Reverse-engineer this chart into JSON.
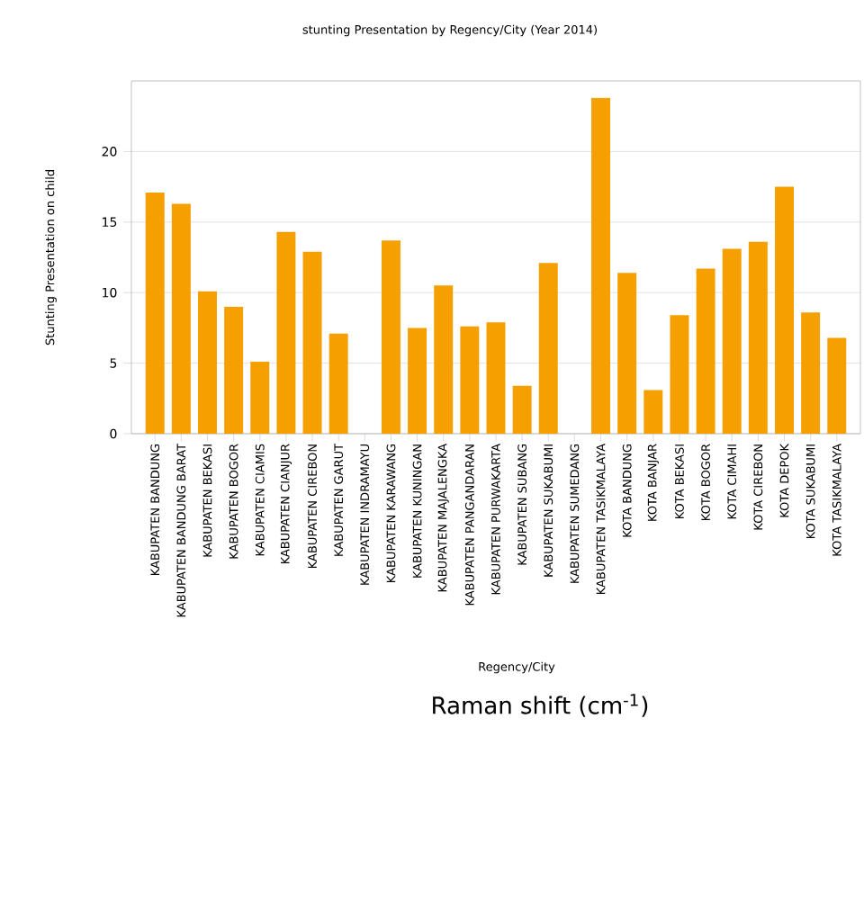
{
  "chart_data": {
    "type": "bar",
    "title": "stunting Presentation by Regency/City  (Year 2014)",
    "xlabel": "Regency/City",
    "ylabel": "Stunting Presentation on child",
    "categories": [
      "KABUPATEN BANDUNG",
      "KABUPATEN BANDUNG BARAT",
      "KABUPATEN BEKASI",
      "KABUPATEN BOGOR",
      "KABUPATEN CIAMIS",
      "KABUPATEN CIANJUR",
      "KABUPATEN CIREBON",
      "KABUPATEN GARUT",
      "KABUPATEN INDRAMAYU",
      "KABUPATEN KARAWANG",
      "KABUPATEN KUNINGAN",
      "KABUPATEN MAJALENGKA",
      "KABUPATEN PANGANDARAN",
      "KABUPATEN PURWAKARTA",
      "KABUPATEN SUBANG",
      "KABUPATEN SUKABUMI",
      "KABUPATEN SUMEDANG",
      "KABUPATEN TASIKMALAYA",
      "KOTA BANDUNG",
      "KOTA BANJAR",
      "KOTA BEKASI",
      "KOTA BOGOR",
      "KOTA CIMAHI",
      "KOTA CIREBON",
      "KOTA DEPOK",
      "KOTA SUKABUMI",
      "KOTA TASIKMALAYA"
    ],
    "values": [
      17.1,
      16.3,
      10.1,
      9.0,
      5.1,
      14.3,
      12.9,
      7.1,
      null,
      13.7,
      7.5,
      10.5,
      7.6,
      7.9,
      3.4,
      12.1,
      null,
      23.8,
      11.4,
      3.1,
      8.4,
      11.7,
      13.1,
      13.6,
      17.5,
      8.6,
      6.8
    ],
    "color": "#f5a000",
    "ylim": [
      0,
      25
    ],
    "yticks": [
      0,
      5,
      10,
      15,
      20
    ],
    "grid": "y",
    "annotations": [
      "Raman shift (cm$^{-1}$)"
    ]
  }
}
